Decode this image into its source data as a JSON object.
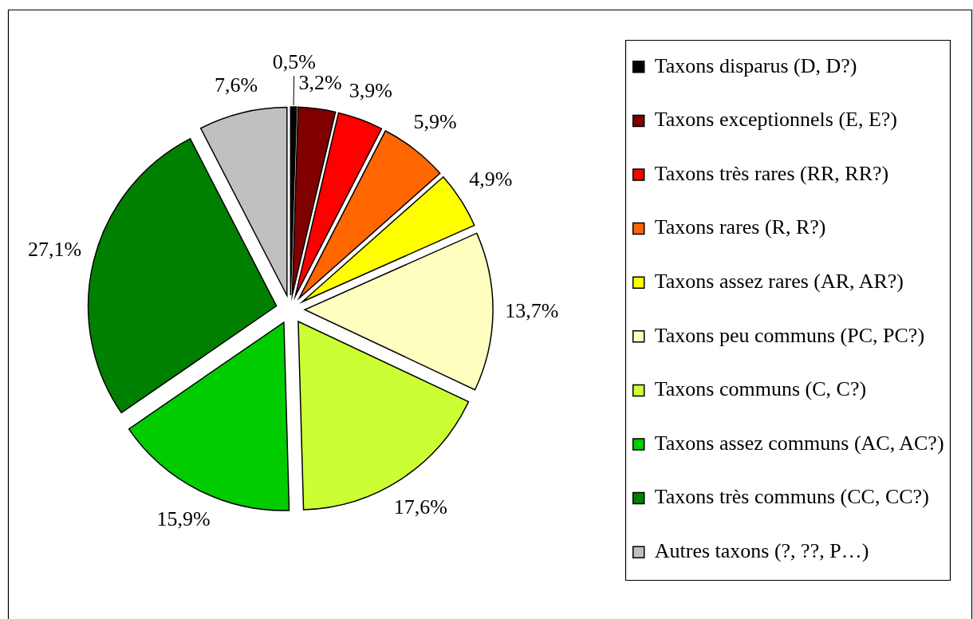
{
  "chart_data": {
    "type": "pie",
    "categories": [
      "Taxons disparus (D, D?)",
      "Taxons exceptionnels (E, E?)",
      "Taxons très rares (RR, RR?)",
      "Taxons rares (R, R?)",
      "Taxons assez rares (AR, AR?)",
      "Taxons peu communs (PC, PC?)",
      "Taxons communs (C, C?)",
      "Taxons assez communs (AC, AC?)",
      "Taxons très communs (CC, CC?)",
      "Autres taxons (?, ??, P…)"
    ],
    "values": [
      0.5,
      3.2,
      3.9,
      5.9,
      4.9,
      13.7,
      17.6,
      15.9,
      27.1,
      7.6
    ],
    "colors": [
      "#000000",
      "#800000",
      "#ff0000",
      "#ff6600",
      "#ffff00",
      "#ffffc0",
      "#ccff33",
      "#00cc00",
      "#008000",
      "#c0c0c0"
    ],
    "value_labels": [
      "0,5%",
      "3,2%",
      "3,9%",
      "5,9%",
      "4,9%",
      "13,7%",
      "17,6%",
      "15,9%",
      "27,1%",
      "7,6%"
    ],
    "legend": "right"
  }
}
